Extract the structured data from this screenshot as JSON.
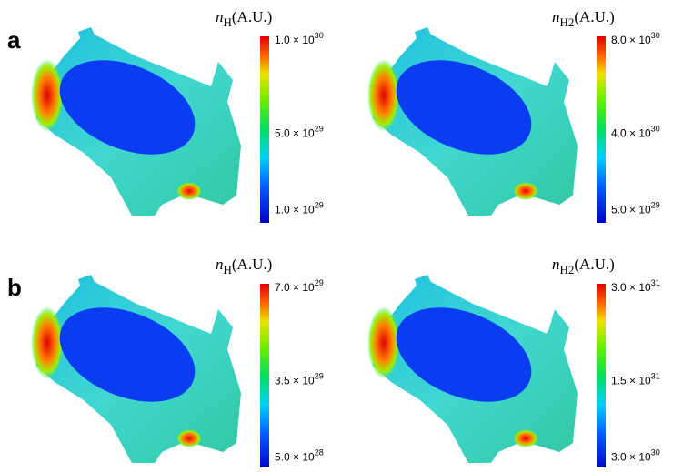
{
  "panels": [
    {
      "label": "a",
      "plots": [
        {
          "colorbar": {
            "title": {
              "symbol": "n",
              "subscript": "H",
              "unit": "(A.U.)"
            },
            "ticks": [
              {
                "mantissa": "1.0 × 10",
                "exponent": "30"
              },
              {
                "mantissa": "5.0 × 10",
                "exponent": "29"
              },
              {
                "mantissa": "1.0 × 10",
                "exponent": "29"
              }
            ]
          }
        },
        {
          "colorbar": {
            "title": {
              "symbol": "n",
              "subscript": "H2",
              "unit": "(A.U.)"
            },
            "ticks": [
              {
                "mantissa": "8.0 × 10",
                "exponent": "30"
              },
              {
                "mantissa": "4.0 × 10",
                "exponent": "30"
              },
              {
                "mantissa": "5.0 × 10",
                "exponent": "29"
              }
            ]
          }
        }
      ]
    },
    {
      "label": "b",
      "plots": [
        {
          "colorbar": {
            "title": {
              "symbol": "n",
              "subscript": "H",
              "unit": "(A.U.)"
            },
            "ticks": [
              {
                "mantissa": "7.0 × 10",
                "exponent": "29"
              },
              {
                "mantissa": "3.5 × 10",
                "exponent": "29"
              },
              {
                "mantissa": "5.0 × 10",
                "exponent": "28"
              }
            ]
          }
        },
        {
          "colorbar": {
            "title": {
              "symbol": "n",
              "subscript": "H2",
              "unit": "(A.U.)"
            },
            "ticks": [
              {
                "mantissa": "3.0 × 10",
                "exponent": "31"
              },
              {
                "mantissa": "1.5 × 10",
                "exponent": "31"
              },
              {
                "mantissa": "3.0 × 10",
                "exponent": "30"
              }
            ]
          }
        }
      ]
    }
  ]
}
